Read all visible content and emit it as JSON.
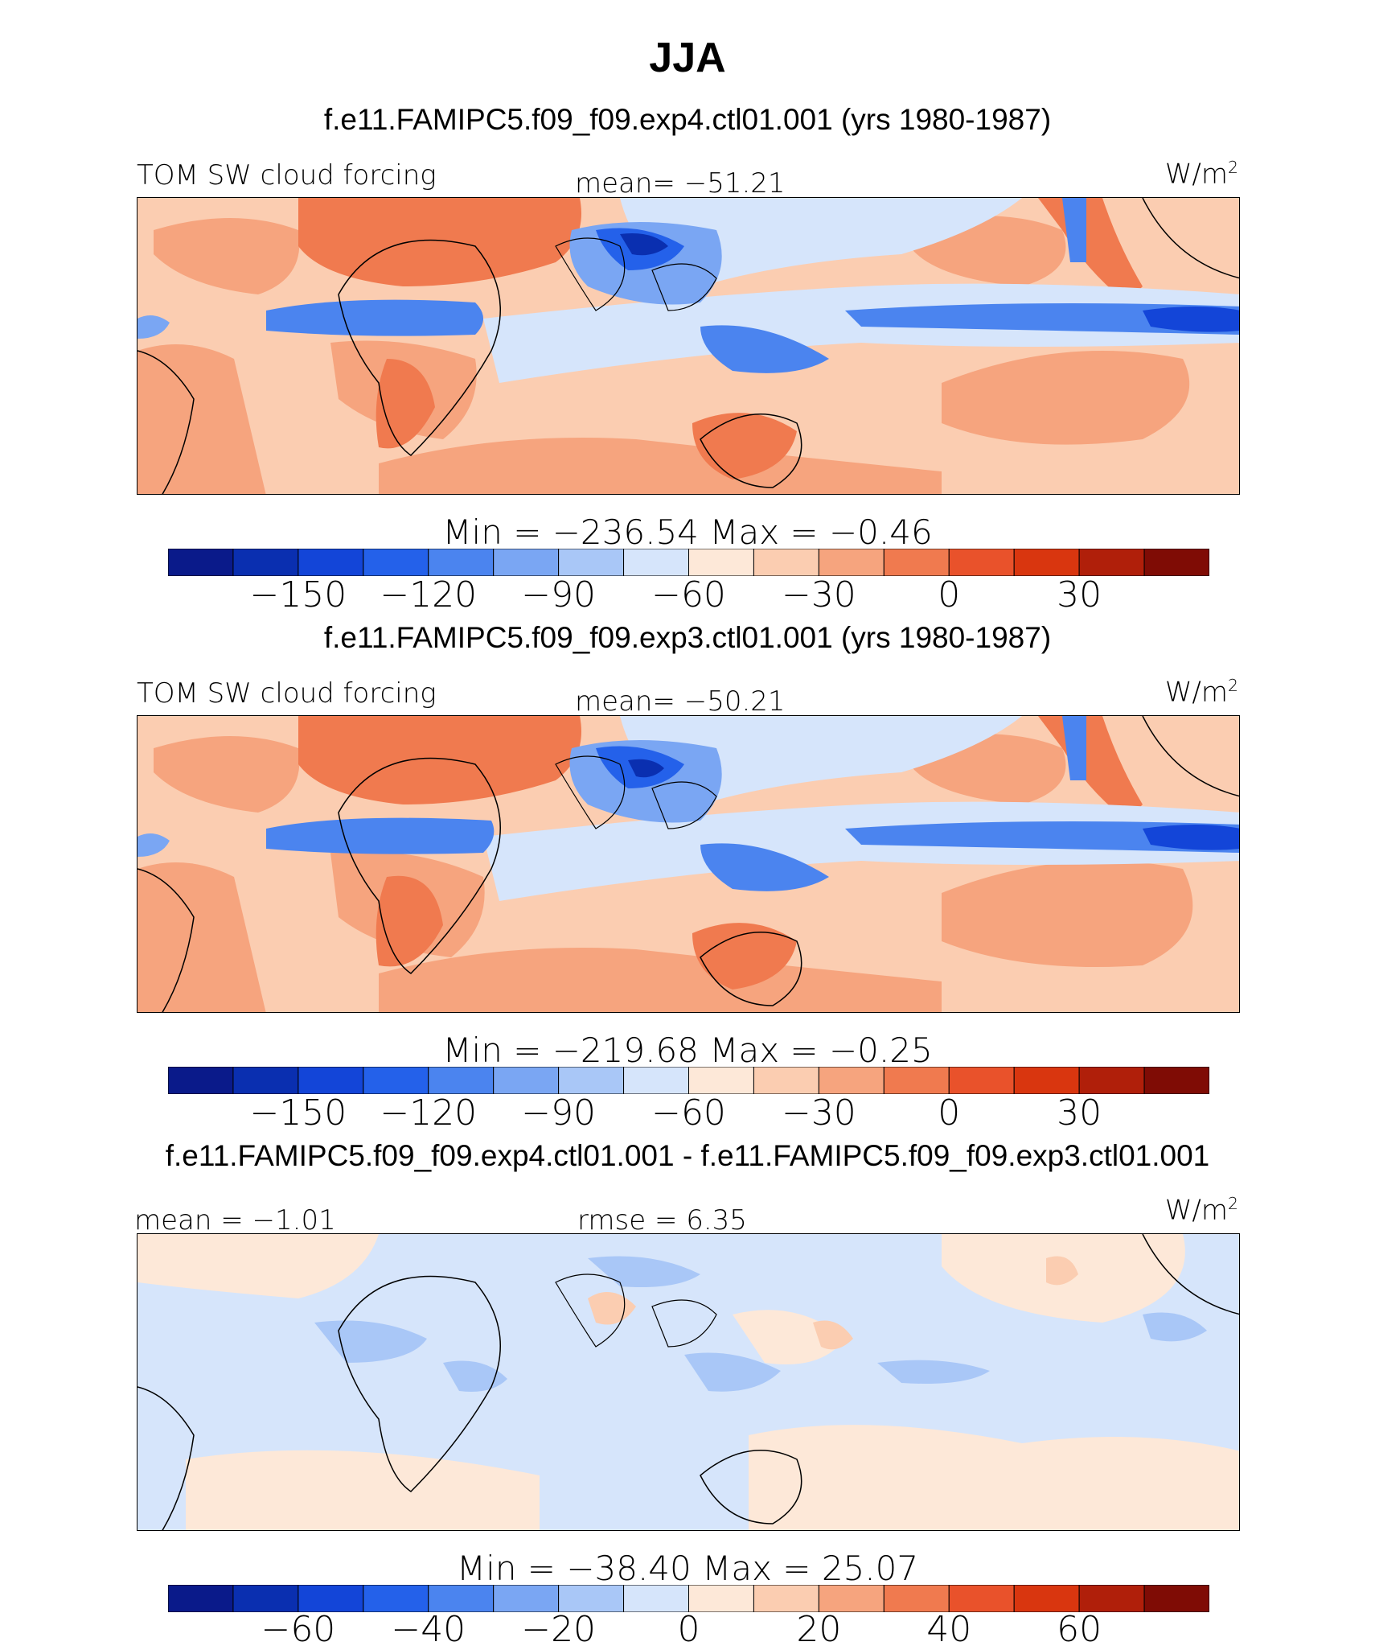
{
  "page": {
    "title": "JJA"
  },
  "panels": [
    {
      "case_title": "f.e11.FAMIPC5.f09_f09.exp4.ctl01.001 (yrs 1980-1987)",
      "left_label": "TOM SW cloud forcing",
      "center_label": "mean= −51.21",
      "units": "W/m",
      "units_sup": "2",
      "minmax": "Min = −236.54 Max = −0.46",
      "colorbar_ticks": [
        "−150",
        "−120",
        "−90",
        "−60",
        "−30",
        "0",
        "30"
      ]
    },
    {
      "case_title": "f.e11.FAMIPC5.f09_f09.exp3.ctl01.001 (yrs 1980-1987)",
      "left_label": "TOM SW cloud forcing",
      "center_label": "mean= −50.21",
      "units": "W/m",
      "units_sup": "2",
      "minmax": "Min = −219.68 Max = −0.25",
      "colorbar_ticks": [
        "−150",
        "−120",
        "−90",
        "−60",
        "−30",
        "0",
        "30"
      ]
    },
    {
      "case_title": "f.e11.FAMIPC5.f09_f09.exp4.ctl01.001 - f.e11.FAMIPC5.f09_f09.exp3.ctl01.001",
      "left_label": "mean = −1.01",
      "center_label": "rmse = 6.35",
      "units": "W/m",
      "units_sup": "2",
      "minmax": "Min = −38.40 Max = 25.07",
      "colorbar_ticks": [
        "−60",
        "−40",
        "−20",
        "0",
        "20",
        "40",
        "60"
      ]
    }
  ],
  "chart_data": [
    {
      "type": "heatmap",
      "title": "f.e11.FAMIPC5.f09_f09.exp4.ctl01.001 (yrs 1980-1987)",
      "variable": "TOM SW cloud forcing",
      "units": "W/m2",
      "mean": -51.21,
      "min": -236.54,
      "max": -0.46,
      "colorbar_levels": [
        -165,
        -150,
        -135,
        -120,
        -105,
        -90,
        -75,
        -60,
        -45,
        -30,
        -15,
        0,
        15,
        30,
        45
      ],
      "colorbar_ticks": [
        -150,
        -120,
        -90,
        -60,
        -30,
        0,
        30
      ]
    },
    {
      "type": "heatmap",
      "title": "f.e11.FAMIPC5.f09_f09.exp3.ctl01.001 (yrs 1980-1987)",
      "variable": "TOM SW cloud forcing",
      "units": "W/m2",
      "mean": -50.21,
      "min": -219.68,
      "max": -0.25,
      "colorbar_levels": [
        -165,
        -150,
        -135,
        -120,
        -105,
        -90,
        -75,
        -60,
        -45,
        -30,
        -15,
        0,
        15,
        30,
        45
      ],
      "colorbar_ticks": [
        -150,
        -120,
        -90,
        -60,
        -30,
        0,
        30
      ]
    },
    {
      "type": "heatmap",
      "title": "f.e11.FAMIPC5.f09_f09.exp4.ctl01.001 - f.e11.FAMIPC5.f09_f09.exp3.ctl01.001",
      "units": "W/m2",
      "mean": -1.01,
      "rmse": 6.35,
      "min": -38.4,
      "max": 25.07,
      "colorbar_levels": [
        -70,
        -60,
        -50,
        -40,
        -30,
        -20,
        -10,
        0,
        10,
        20,
        30,
        40,
        50,
        60,
        70
      ],
      "colorbar_ticks": [
        -60,
        -40,
        -20,
        0,
        20,
        40,
        60
      ]
    }
  ],
  "palette": [
    "#0a1a8a",
    "#0a2fb0",
    "#1345d8",
    "#2461ea",
    "#4b84ef",
    "#7aa6f3",
    "#a9c7f7",
    "#d6e5fb",
    "#fde8d8",
    "#fbcdb1",
    "#f6a47e",
    "#f07a4f",
    "#e9522b",
    "#d9360f",
    "#b01f0a",
    "#7f0c05"
  ]
}
